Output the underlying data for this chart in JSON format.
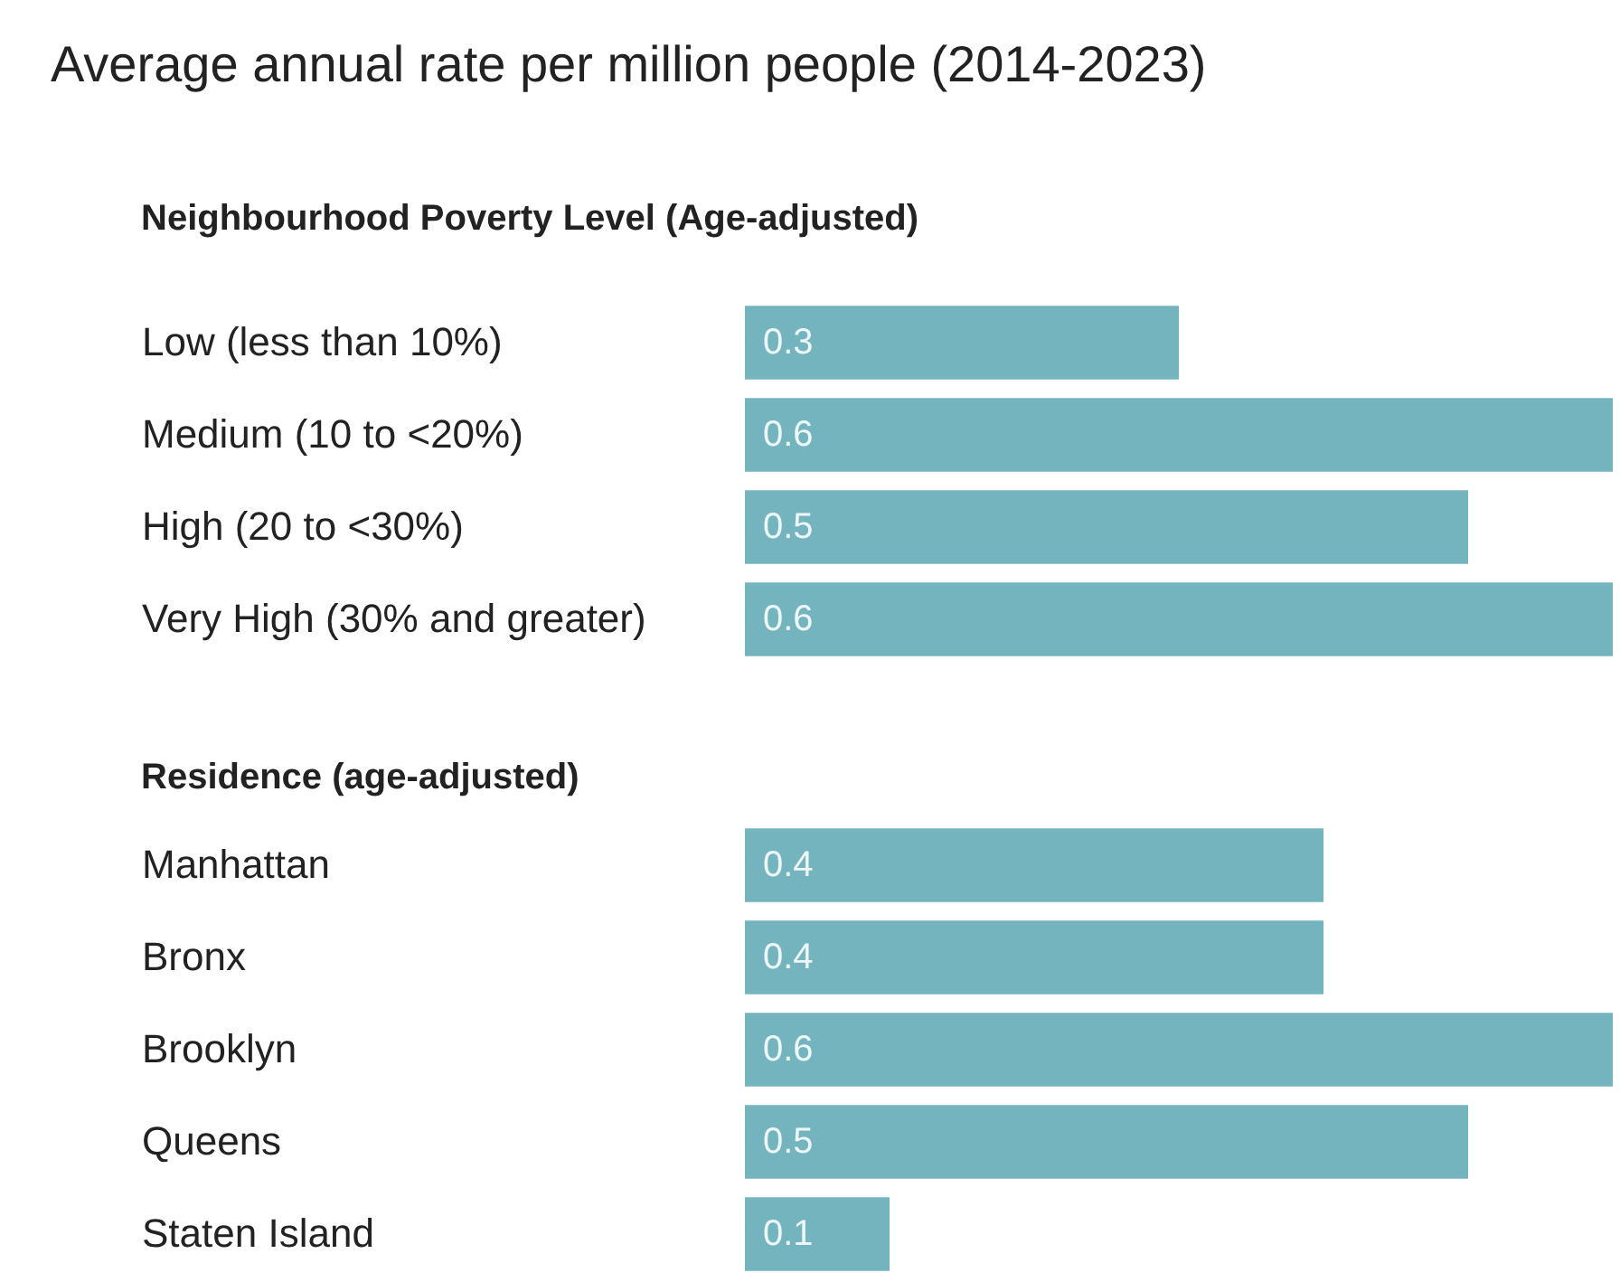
{
  "chart_data": [
    {
      "type": "bar",
      "orientation": "horizontal",
      "title": "Average annual rate per million people (2014-2023)",
      "subtitle": "Neighbourhood Poverty Level (Age-adjusted)",
      "categories": [
        "Low (less than 10%)",
        "Medium (10 to <20%)",
        "High (20 to <30%)",
        "Very High (30% and greater)"
      ],
      "values": [
        0.3,
        0.6,
        0.5,
        0.6
      ],
      "color": "#74b4bf",
      "data_labels": true
    },
    {
      "type": "bar",
      "orientation": "horizontal",
      "subtitle": "Residence (age-adjusted)",
      "categories": [
        "Manhattan",
        "Bronx",
        "Brooklyn",
        "Queens",
        "Staten Island"
      ],
      "values": [
        0.4,
        0.4,
        0.6,
        0.5,
        0.1
      ],
      "color": "#74b4bf",
      "data_labels": true
    }
  ]
}
